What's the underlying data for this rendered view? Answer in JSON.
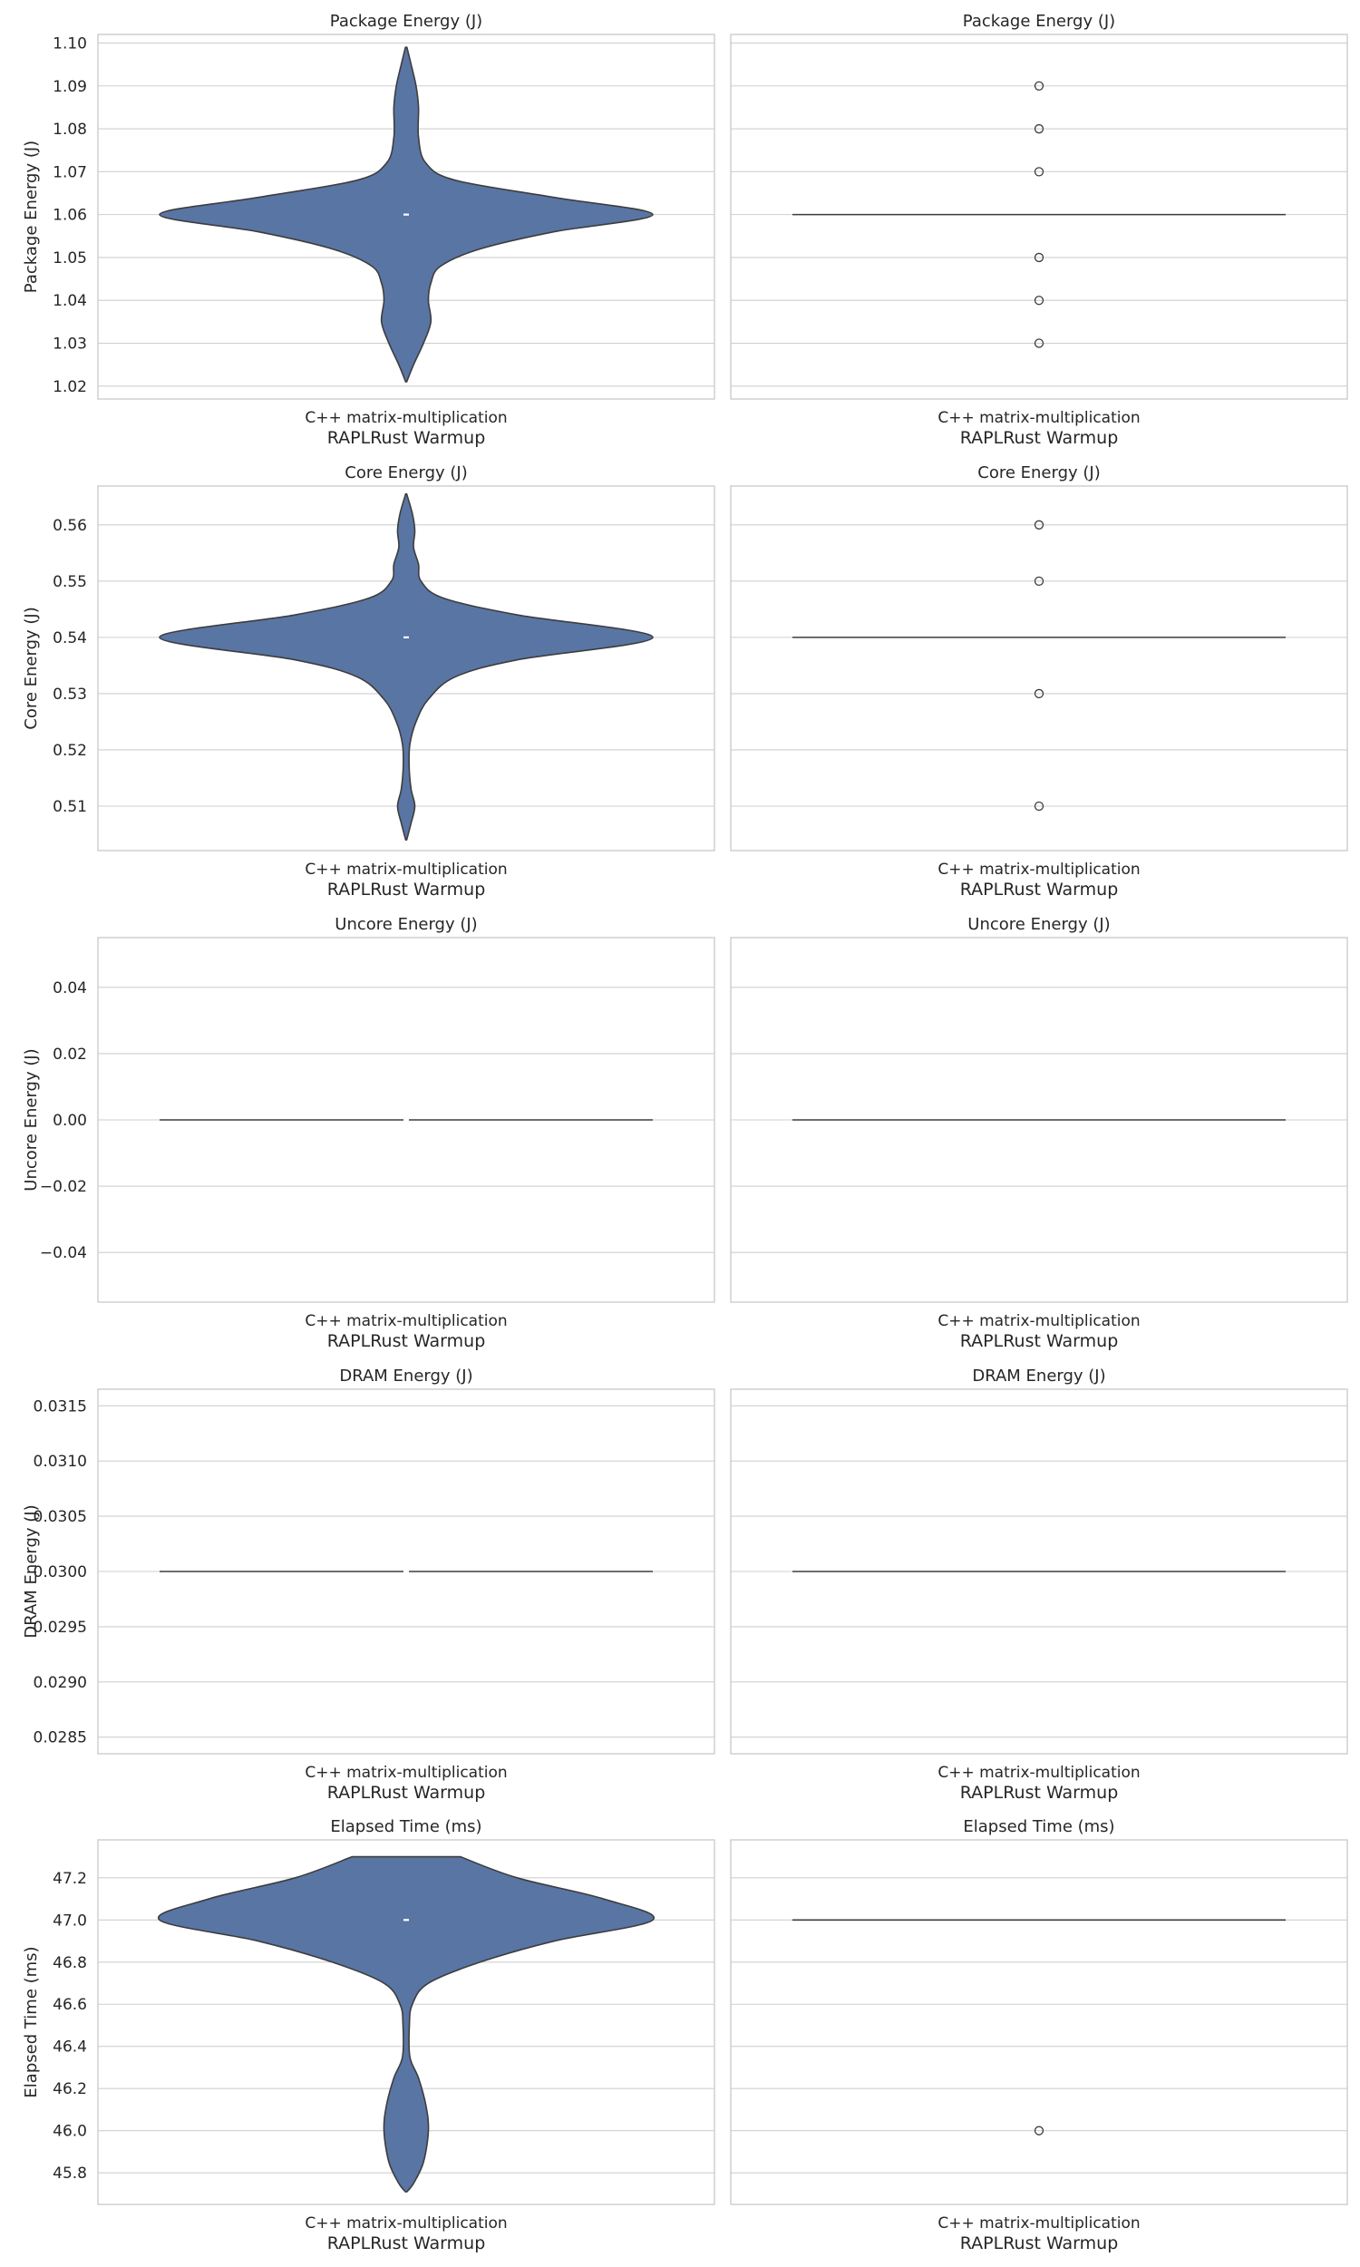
{
  "colors": {
    "violin_fill": "#5975a4",
    "edge": "#3d3d3d",
    "grid": "#cfcfcf",
    "spine": "#cccccc",
    "median_marker": "#ffffff"
  },
  "chart_data": [
    {
      "type": "violin",
      "title": "Package Energy (J)",
      "ylabel": "Package Energy (J)",
      "category": "C++ matrix-multiplication",
      "xlabel": "RAPLRust Warmup",
      "ylim": [
        1.017,
        1.102
      ],
      "yticks": [
        1.02,
        1.03,
        1.04,
        1.05,
        1.06,
        1.07,
        1.08,
        1.09,
        1.1
      ],
      "ytick_labels": [
        "1.02",
        "1.03",
        "1.04",
        "1.05",
        "1.06",
        "1.07",
        "1.08",
        "1.09",
        "1.10"
      ],
      "median": 1.06,
      "density": [
        [
          1.021,
          0.002
        ],
        [
          1.025,
          0.03
        ],
        [
          1.03,
          0.07
        ],
        [
          1.035,
          0.1
        ],
        [
          1.04,
          0.09
        ],
        [
          1.044,
          0.1
        ],
        [
          1.048,
          0.14
        ],
        [
          1.052,
          0.3
        ],
        [
          1.056,
          0.6
        ],
        [
          1.06,
          1.0
        ],
        [
          1.064,
          0.6
        ],
        [
          1.068,
          0.2
        ],
        [
          1.072,
          0.08
        ],
        [
          1.078,
          0.05
        ],
        [
          1.085,
          0.05
        ],
        [
          1.09,
          0.04
        ],
        [
          1.095,
          0.02
        ],
        [
          1.099,
          0.003
        ]
      ]
    },
    {
      "type": "box",
      "title": "Package Energy (J)",
      "ylabel": "",
      "category": "C++ matrix-multiplication",
      "xlabel": "RAPLRust Warmup",
      "ylim": [
        1.017,
        1.102
      ],
      "yticks": [
        1.02,
        1.03,
        1.04,
        1.05,
        1.06,
        1.07,
        1.08,
        1.09,
        1.1
      ],
      "q1": 1.06,
      "median": 1.06,
      "q3": 1.06,
      "whisker_low": 1.06,
      "whisker_high": 1.06,
      "outliers": [
        1.09,
        1.08,
        1.07,
        1.05,
        1.04,
        1.03
      ]
    },
    {
      "type": "violin",
      "title": "Core Energy (J)",
      "ylabel": "Core Energy (J)",
      "category": "C++ matrix-multiplication",
      "xlabel": "RAPLRust Warmup",
      "ylim": [
        0.5021,
        0.5669
      ],
      "yticks": [
        0.51,
        0.52,
        0.53,
        0.54,
        0.55,
        0.56
      ],
      "ytick_labels": [
        "0.51",
        "0.52",
        "0.53",
        "0.54",
        "0.55",
        "0.56"
      ],
      "median": 0.54,
      "density": [
        [
          0.504,
          0.002
        ],
        [
          0.507,
          0.02
        ],
        [
          0.51,
          0.035
        ],
        [
          0.513,
          0.02
        ],
        [
          0.517,
          0.012
        ],
        [
          0.521,
          0.015
        ],
        [
          0.525,
          0.04
        ],
        [
          0.529,
          0.09
        ],
        [
          0.533,
          0.2
        ],
        [
          0.536,
          0.45
        ],
        [
          0.54,
          1.0
        ],
        [
          0.544,
          0.45
        ],
        [
          0.547,
          0.15
        ],
        [
          0.55,
          0.06
        ],
        [
          0.553,
          0.05
        ],
        [
          0.556,
          0.03
        ],
        [
          0.559,
          0.035
        ],
        [
          0.562,
          0.025
        ],
        [
          0.5655,
          0.002
        ]
      ]
    },
    {
      "type": "box",
      "title": "Core Energy (J)",
      "ylabel": "",
      "category": "C++ matrix-multiplication",
      "xlabel": "RAPLRust Warmup",
      "ylim": [
        0.5021,
        0.5669
      ],
      "yticks": [
        0.51,
        0.52,
        0.53,
        0.54,
        0.55,
        0.56
      ],
      "q1": 0.54,
      "median": 0.54,
      "q3": 0.54,
      "whisker_low": 0.54,
      "whisker_high": 0.54,
      "outliers": [
        0.56,
        0.55,
        0.53,
        0.51
      ]
    },
    {
      "type": "violin",
      "title": "Uncore Energy (J)",
      "ylabel": "Uncore Energy (J)",
      "category": "C++ matrix-multiplication",
      "xlabel": "RAPLRust Warmup",
      "ylim": [
        -0.055,
        0.055
      ],
      "yticks": [
        -0.04,
        -0.02,
        0.0,
        0.02,
        0.04
      ],
      "ytick_labels": [
        "−0.04",
        "−0.02",
        "0.00",
        "0.02",
        "0.04"
      ],
      "median": 0.0,
      "flat": true
    },
    {
      "type": "box",
      "title": "Uncore Energy (J)",
      "ylabel": "",
      "category": "C++ matrix-multiplication",
      "xlabel": "RAPLRust Warmup",
      "ylim": [
        -0.055,
        0.055
      ],
      "yticks": [
        -0.04,
        -0.02,
        0.0,
        0.02,
        0.04
      ],
      "q1": 0.0,
      "median": 0.0,
      "q3": 0.0,
      "whisker_low": 0.0,
      "whisker_high": 0.0,
      "outliers": []
    },
    {
      "type": "violin",
      "title": "DRAM Energy (J)",
      "ylabel": "DRAM Energy (J)",
      "category": "C++ matrix-multiplication",
      "xlabel": "RAPLRust Warmup",
      "ylim": [
        0.02835,
        0.03165
      ],
      "yticks": [
        0.0285,
        0.029,
        0.0295,
        0.03,
        0.0305,
        0.031,
        0.0315
      ],
      "ytick_labels": [
        "0.0285",
        "0.0290",
        "0.0295",
        "0.0300",
        "0.0305",
        "0.0310",
        "0.0315"
      ],
      "median": 0.03,
      "flat": true
    },
    {
      "type": "box",
      "title": "DRAM Energy (J)",
      "ylabel": "",
      "category": "C++ matrix-multiplication",
      "xlabel": "RAPLRust Warmup",
      "ylim": [
        0.02835,
        0.03165
      ],
      "yticks": [
        0.0285,
        0.029,
        0.0295,
        0.03,
        0.0305,
        0.031,
        0.0315
      ],
      "q1": 0.03,
      "median": 0.03,
      "q3": 0.03,
      "whisker_low": 0.03,
      "whisker_high": 0.03,
      "outliers": []
    },
    {
      "type": "violin",
      "title": "Elapsed Time (ms)",
      "ylabel": "Elapsed Time (ms)",
      "category": "C++ matrix-multiplication",
      "xlabel": "RAPLRust Warmup",
      "ylim": [
        45.65,
        47.38
      ],
      "yticks": [
        45.8,
        46.0,
        46.2,
        46.4,
        46.6,
        46.8,
        47.0,
        47.2
      ],
      "ytick_labels": [
        "45.8",
        "46.0",
        "46.2",
        "46.4",
        "46.6",
        "46.8",
        "47.0",
        "47.2"
      ],
      "median": 47.0,
      "density": [
        [
          45.71,
          0.003
        ],
        [
          45.75,
          0.03
        ],
        [
          45.85,
          0.07
        ],
        [
          46.0,
          0.09
        ],
        [
          46.12,
          0.08
        ],
        [
          46.25,
          0.05
        ],
        [
          46.35,
          0.015
        ],
        [
          46.5,
          0.013
        ],
        [
          46.6,
          0.025
        ],
        [
          46.7,
          0.09
        ],
        [
          46.8,
          0.3
        ],
        [
          46.9,
          0.6
        ],
        [
          47.0,
          1.0
        ],
        [
          47.1,
          0.8
        ],
        [
          47.2,
          0.45
        ],
        [
          47.3,
          0.22
        ]
      ],
      "clip_top": 47.3
    },
    {
      "type": "box",
      "title": "Elapsed Time (ms)",
      "ylabel": "",
      "category": "C++ matrix-multiplication",
      "xlabel": "RAPLRust Warmup",
      "ylim": [
        45.65,
        47.38
      ],
      "yticks": [
        45.8,
        46.0,
        46.2,
        46.4,
        46.6,
        46.8,
        47.0,
        47.2
      ],
      "q1": 47.0,
      "median": 47.0,
      "q3": 47.0,
      "whisker_low": 47.0,
      "whisker_high": 47.0,
      "outliers": [
        46.0
      ]
    }
  ]
}
